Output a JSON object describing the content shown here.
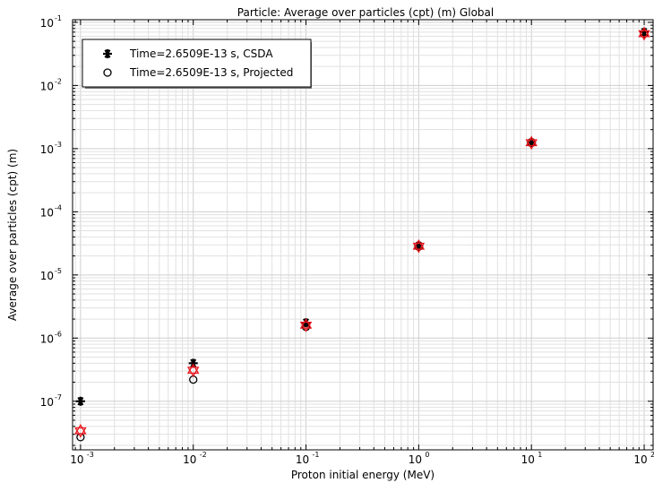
{
  "chart_data": {
    "type": "scatter",
    "title": "Particle: Average over particles (cpt) (m)  Global",
    "xlabel": "Proton initial energy (MeV)",
    "ylabel": "Average over particles (cpt) (m)",
    "x_scale": "log",
    "y_scale": "log",
    "xlim": [
      0.00085,
      120
    ],
    "ylim": [
      1.7e-08,
      0.11
    ],
    "grid": true,
    "legend_position": "top-left",
    "x_ticks": [
      {
        "base": "10",
        "exp": "-3"
      },
      {
        "base": "10",
        "exp": "-2"
      },
      {
        "base": "10",
        "exp": "-1"
      },
      {
        "base": "10",
        "exp": "0"
      },
      {
        "base": "10",
        "exp": "1"
      },
      {
        "base": "10",
        "exp": "2"
      }
    ],
    "y_ticks": [
      {
        "base": "10",
        "exp": "-7"
      },
      {
        "base": "10",
        "exp": "-6"
      },
      {
        "base": "10",
        "exp": "-5"
      },
      {
        "base": "10",
        "exp": "-4"
      },
      {
        "base": "10",
        "exp": "-3"
      },
      {
        "base": "10",
        "exp": "-2"
      },
      {
        "base": "10",
        "exp": "-1"
      }
    ],
    "x": [
      0.001,
      0.01,
      0.1,
      1,
      10,
      100
    ],
    "series": [
      {
        "name": "Time=2.6509E-13 s, CSDA",
        "marker": "asterisk",
        "color": "#000000",
        "values": [
          1e-07,
          4e-07,
          1.75e-06,
          2.9e-05,
          0.00125,
          0.07
        ]
      },
      {
        "name": "Time=2.6509E-13 s, Projected",
        "marker": "circle",
        "color": "#000000",
        "values": [
          2.7e-08,
          2.2e-07,
          1.5e-06,
          2.8e-05,
          0.00123,
          0.066
        ]
      },
      {
        "name": "",
        "marker": "star-of-david",
        "color": "#e8151b",
        "values": [
          3.4e-08,
          3.1e-07,
          1.6e-06,
          2.85e-05,
          0.00124,
          0.066
        ]
      }
    ]
  }
}
